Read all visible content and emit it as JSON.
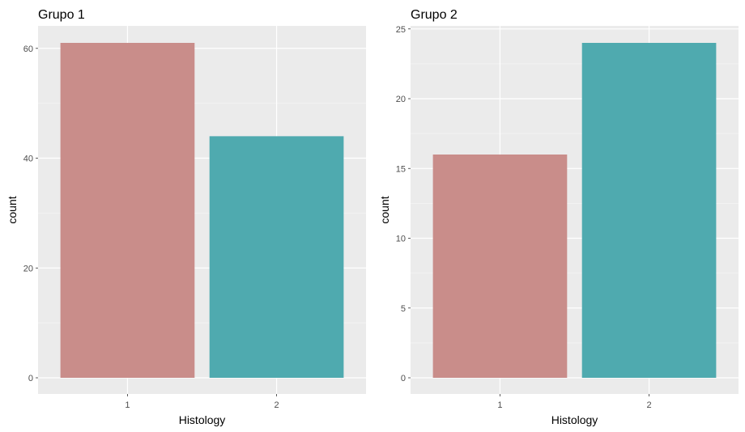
{
  "chart_data": [
    {
      "type": "bar",
      "title": "Grupo 1",
      "xlabel": "Histology",
      "ylabel": "count",
      "categories": [
        "1",
        "2"
      ],
      "values": [
        61,
        44
      ],
      "ylim": [
        0,
        64
      ],
      "yticks": [
        0,
        20,
        40,
        60
      ],
      "colors": [
        "#c98d8a",
        "#4faaaf"
      ],
      "grid": true,
      "legend": "none"
    },
    {
      "type": "bar",
      "title": "Grupo 2",
      "xlabel": "Histology",
      "ylabel": "count",
      "categories": [
        "1",
        "2"
      ],
      "values": [
        16,
        24
      ],
      "ylim": [
        0,
        25.2
      ],
      "yticks": [
        0,
        5,
        10,
        15,
        20,
        25
      ],
      "colors": [
        "#c98d8a",
        "#4faaaf"
      ],
      "grid": true,
      "legend": "none"
    }
  ]
}
